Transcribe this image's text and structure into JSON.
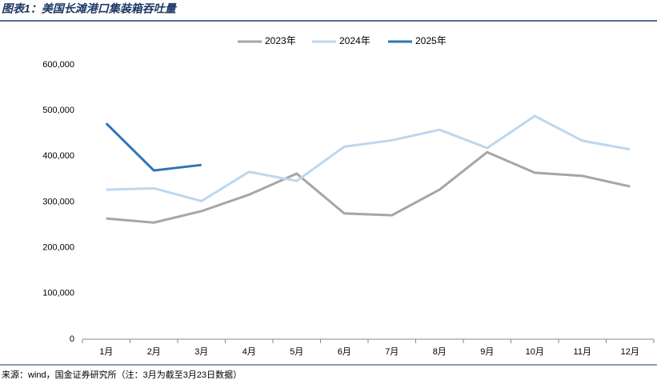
{
  "chart_data": {
    "type": "line",
    "title": "图表1：美国长滩港口集装箱吞吐量",
    "source": "来源：wind，国金证券研究所（注：3月为截至3月23日数据）",
    "categories": [
      "1月",
      "2月",
      "3月",
      "4月",
      "5月",
      "6月",
      "7月",
      "8月",
      "9月",
      "10月",
      "11月",
      "12月"
    ],
    "series": [
      {
        "name": "2023年",
        "color": "#a6a6a6",
        "values": [
          264000,
          255000,
          280000,
          316000,
          362000,
          275000,
          271000,
          327000,
          409000,
          364000,
          357000,
          334000
        ]
      },
      {
        "name": "2024年",
        "color": "#bdd7ee",
        "values": [
          327000,
          330000,
          302000,
          366000,
          346000,
          421000,
          435000,
          458000,
          418000,
          488000,
          434000,
          415000
        ]
      },
      {
        "name": "2025年",
        "color": "#2e75b6",
        "values": [
          472000,
          369000,
          381000,
          null,
          null,
          null,
          null,
          null,
          null,
          null,
          null,
          null
        ]
      }
    ],
    "ylim": [
      0,
      600000
    ],
    "yticks": [
      0,
      {
        "value": 100000,
        "label": "100,000"
      },
      {
        "value": 200000,
        "label": "200,000"
      },
      {
        "value": 300000,
        "label": "300,000"
      },
      {
        "value": 400000,
        "label": "400,000"
      },
      {
        "value": 500000,
        "label": "500,000"
      },
      {
        "value": 600000,
        "label": "600,000"
      }
    ],
    "legend": "top",
    "grid": false
  }
}
